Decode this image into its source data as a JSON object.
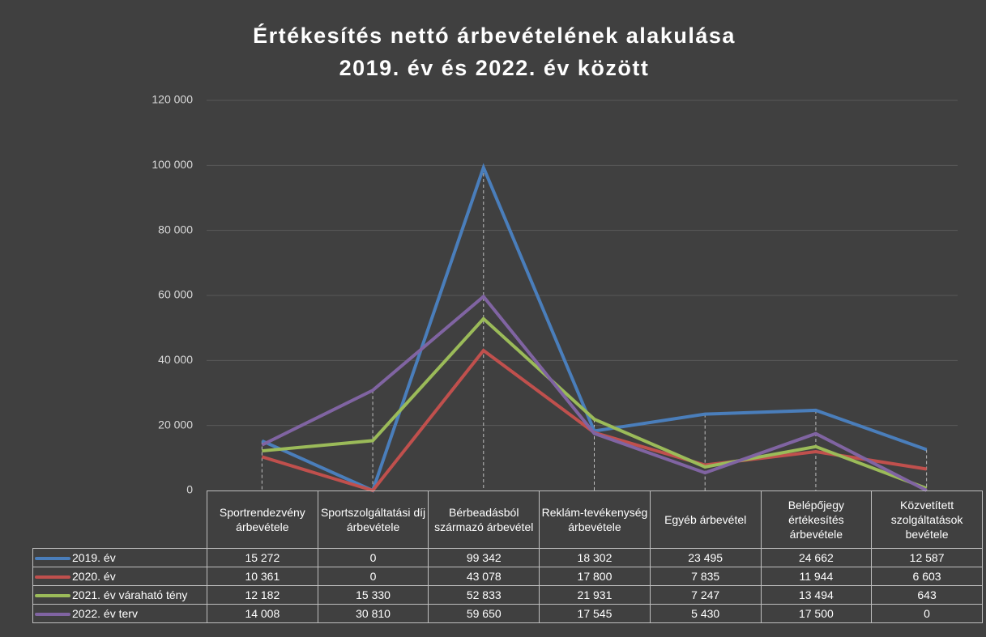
{
  "chart_data": {
    "type": "line",
    "title": [
      "Értékesítés nettó árbevételének alakulása",
      "2019. év és 2022. év között"
    ],
    "categories": [
      "Sportrendezvény árbevétele",
      "Sportszolgáltatási díj árbevétele",
      "Bérbeadásból származó árbevétel",
      "Reklám-tevékenység árbevétele",
      "Egyéb árbevétel",
      "Belépőjegy értékesítés árbevétele",
      "Közvetített szolgáltatások bevétele"
    ],
    "series": [
      {
        "name": "2019. év",
        "color": "#4a7ebb",
        "values": [
          15272,
          0,
          99342,
          18302,
          23495,
          24662,
          12587
        ],
        "value_labels": [
          "15 272",
          "0",
          "99 342",
          "18 302",
          "23 495",
          "24 662",
          "12 587"
        ]
      },
      {
        "name": "2020. év",
        "color": "#c0504d",
        "values": [
          10361,
          0,
          43078,
          17800,
          7835,
          11944,
          6603
        ],
        "value_labels": [
          "10 361",
          "0",
          "43 078",
          "17 800",
          "7 835",
          "11 944",
          "6 603"
        ]
      },
      {
        "name": "2021. év várahatό tény",
        "color": "#9bbb59",
        "values": [
          12182,
          15330,
          52833,
          21931,
          7247,
          13494,
          643
        ],
        "value_labels": [
          "12 182",
          "15 330",
          "52 833",
          "21 931",
          "7 247",
          "13 494",
          "643"
        ]
      },
      {
        "name": "2022. év terv",
        "color": "#8064a2",
        "values": [
          14008,
          30810,
          59650,
          17545,
          5430,
          17500,
          0
        ],
        "value_labels": [
          "14 008",
          "30 810",
          "59 650",
          "17 545",
          "5 430",
          "17 500",
          "0"
        ]
      }
    ],
    "ylim": [
      0,
      120000
    ],
    "yticks": [
      0,
      {
        "value": 20000,
        "label": "20 000"
      },
      {
        "value": 40000,
        "label": "40 000"
      },
      {
        "value": 60000,
        "label": "60 000"
      },
      {
        "value": 80000,
        "label": "80 000"
      },
      {
        "value": 100000,
        "label": "100 000"
      },
      {
        "value": 120000,
        "label": "120 000"
      }
    ],
    "grid": true
  }
}
